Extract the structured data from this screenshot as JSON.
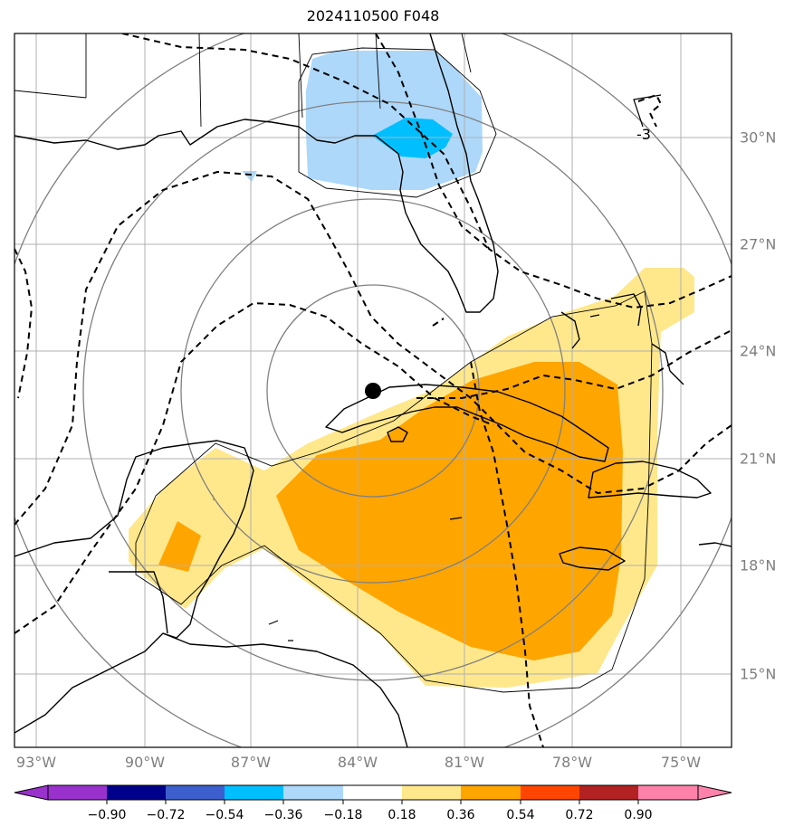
{
  "title": "2024110500 F048",
  "map": {
    "longitude_labels": [
      "93°W",
      "90°W",
      "87°W",
      "84°W",
      "81°W",
      "78°W",
      "75°W"
    ],
    "latitude_labels": [
      "30°N",
      "27°N",
      "24°N",
      "21°N",
      "18°N",
      "15°N"
    ],
    "contour_label": "-3",
    "colors": {
      "coastline": "#000000",
      "gridline": "#b0b0b0",
      "range_ring": "#808080",
      "contour": "#000000",
      "light_blue": "#add8fa",
      "blue": "#00bfff",
      "light_yellow": "#ffe88c",
      "orange": "#ffa500",
      "center_marker": "#000000"
    }
  },
  "colorbar": {
    "tick_labels": [
      "−0.90",
      "−0.72",
      "−0.54",
      "−0.36",
      "−0.18",
      "0.18",
      "0.36",
      "0.54",
      "0.72",
      "0.90"
    ],
    "colors": [
      "#9932cc",
      "#00008b",
      "#3c5fcd",
      "#00bfff",
      "#add8fa",
      "#ffffff",
      "#ffe88c",
      "#ffa500",
      "#ff4500",
      "#b22222",
      "#ff82ab"
    ]
  }
}
